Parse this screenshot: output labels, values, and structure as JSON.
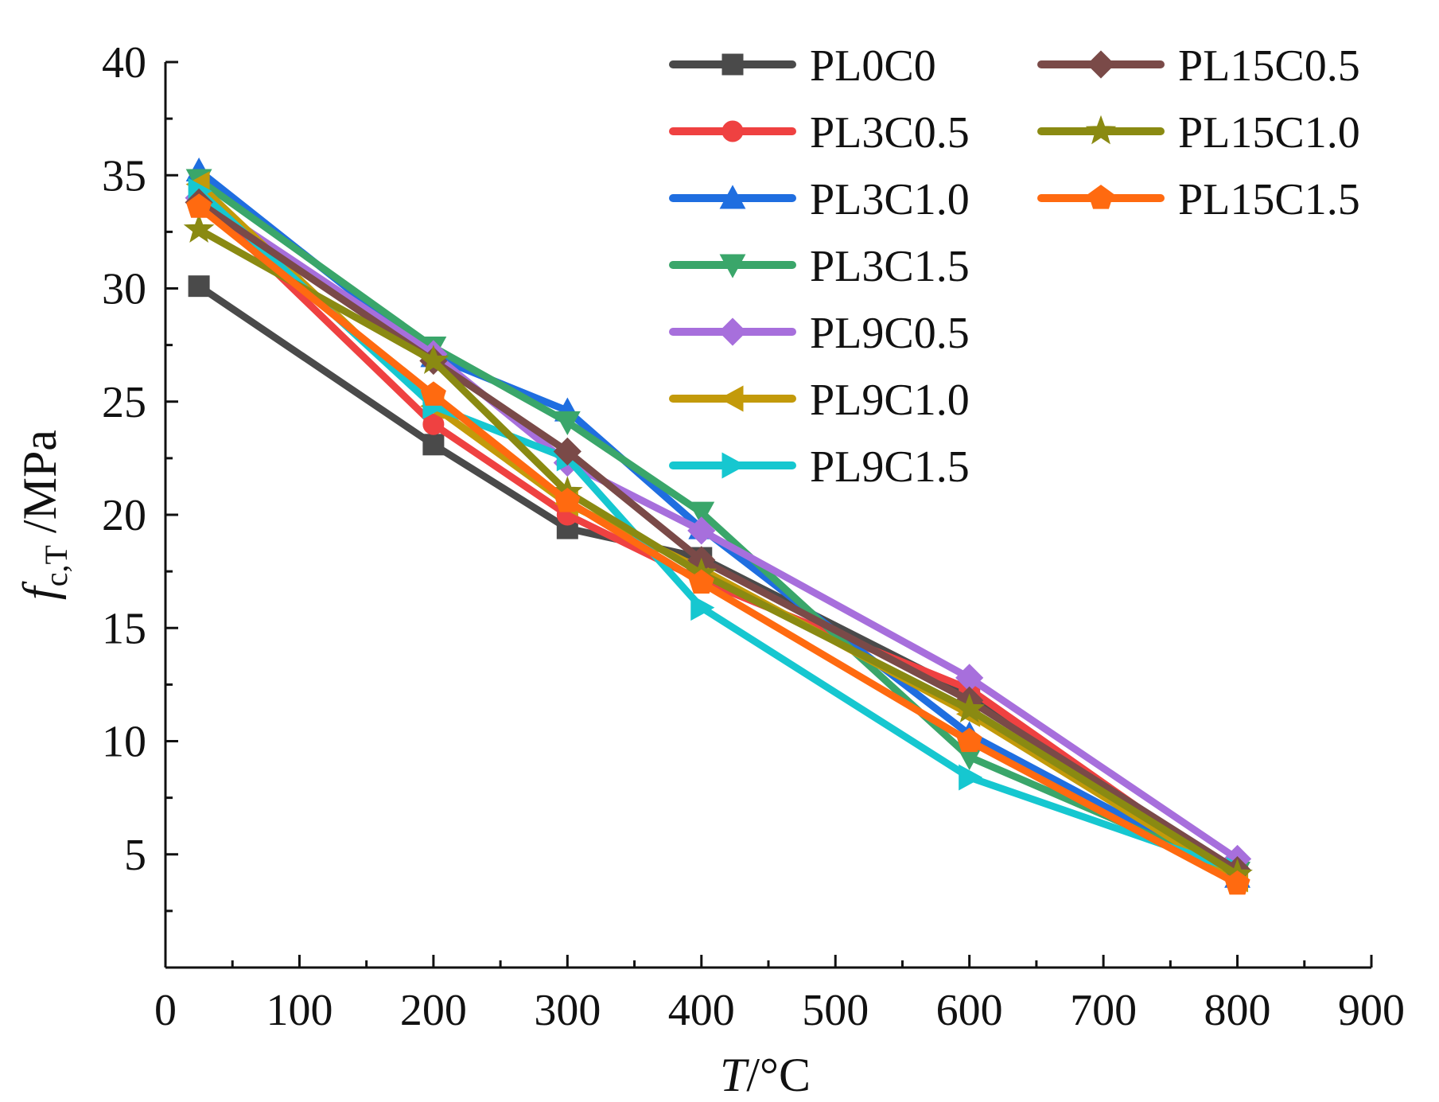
{
  "chart_data": {
    "type": "line",
    "title": "",
    "xlabel": {
      "main": "T",
      "unit": "/°C"
    },
    "ylabel": {
      "main": "f",
      "sub": "c,T",
      "unit": " /MPa"
    },
    "xlim": [
      0,
      900
    ],
    "ylim": [
      0,
      40
    ],
    "xticks": [
      0,
      100,
      200,
      300,
      400,
      500,
      600,
      700,
      800,
      900
    ],
    "xtick_labels": [
      "0",
      "100",
      "200",
      "300",
      "400",
      "500",
      "600",
      "700",
      "800",
      "900"
    ],
    "yticks": [
      5,
      10,
      15,
      20,
      25,
      30,
      35,
      40
    ],
    "ytick_labels": [
      "5",
      "10",
      "15",
      "20",
      "25",
      "30",
      "35",
      "40"
    ],
    "grid": false,
    "legend_position": "top-right",
    "x": [
      25,
      200,
      300,
      400,
      600,
      800
    ],
    "series": [
      {
        "name": "PL0C0",
        "color": "#4a4a4a",
        "marker": "square",
        "values": [
          30.1,
          23.1,
          19.4,
          18.1,
          12.1,
          4.1
        ]
      },
      {
        "name": "PL3C0.5",
        "color": "#ef4141",
        "marker": "circle",
        "values": [
          34.0,
          24.0,
          20.0,
          17.1,
          12.3,
          4.0
        ]
      },
      {
        "name": "PL3C1.0",
        "color": "#1f6ee0",
        "marker": "triangle-up",
        "values": [
          35.2,
          27.0,
          24.6,
          19.4,
          10.3,
          4.0
        ]
      },
      {
        "name": "PL3C1.5",
        "color": "#3aa66a",
        "marker": "triangle-down",
        "values": [
          34.8,
          27.4,
          24.1,
          20.1,
          9.3,
          4.2
        ]
      },
      {
        "name": "PL9C0.5",
        "color": "#a76fdc",
        "marker": "diamond",
        "values": [
          34.0,
          27.1,
          22.3,
          19.3,
          12.8,
          4.8
        ]
      },
      {
        "name": "PL9C1.0",
        "color": "#c39a0a",
        "marker": "triangle-left",
        "values": [
          34.6,
          24.8,
          20.5,
          17.6,
          11.2,
          3.9
        ]
      },
      {
        "name": "PL9C1.5",
        "color": "#16c7d0",
        "marker": "triangle-right",
        "values": [
          34.3,
          24.8,
          22.5,
          15.9,
          8.4,
          4.3
        ]
      },
      {
        "name": "PL15C0.5",
        "color": "#7a4a48",
        "marker": "diamond",
        "values": [
          33.8,
          26.8,
          22.8,
          18.0,
          11.8,
          4.3
        ]
      },
      {
        "name": "PL15C1.0",
        "color": "#8a8a12",
        "marker": "star",
        "values": [
          32.6,
          26.8,
          21.0,
          17.4,
          11.4,
          4.1
        ]
      },
      {
        "name": "PL15C1.5",
        "color": "#ff6a10",
        "marker": "pentagon",
        "values": [
          33.6,
          25.3,
          20.6,
          17.0,
          10.0,
          3.7
        ]
      }
    ]
  }
}
